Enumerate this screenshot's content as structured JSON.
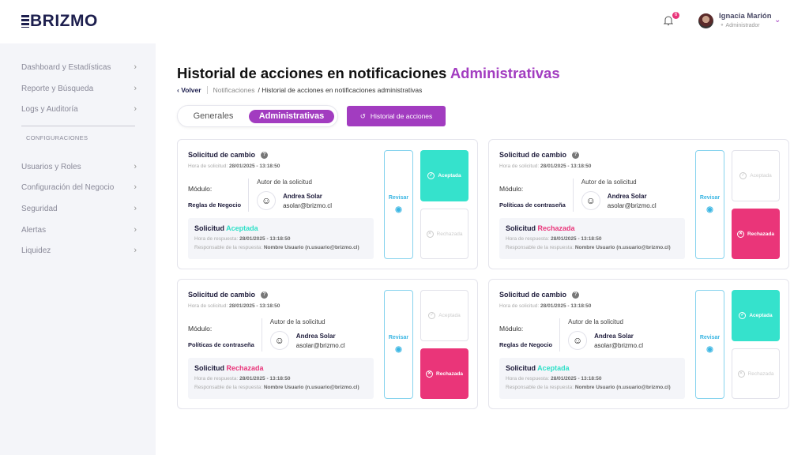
{
  "header": {
    "logo": "BRIZMO",
    "notifications_count": "6",
    "user_name": "Ignacia Marión",
    "user_role": "Administrador"
  },
  "sidebar": {
    "items": [
      {
        "label": "Dashboard y Estadísticas"
      },
      {
        "label": "Reporte y Búsqueda"
      },
      {
        "label": "Logs y Auditoría"
      }
    ],
    "section": "CONFIGURACIONES",
    "config_items": [
      {
        "label": "Usuarios y Roles"
      },
      {
        "label": "Configuración del Negocio"
      },
      {
        "label": "Seguridad"
      },
      {
        "label": "Alertas"
      },
      {
        "label": "Liquidez"
      }
    ]
  },
  "page": {
    "title": "Historial de acciones en notificaciones",
    "title_accent": "Administrativas",
    "breadcrumb": {
      "back": "Volver",
      "parent": "Notificaciones",
      "current": "/ Historial de acciones en notificaciones administrativas"
    },
    "tabs": {
      "general": "Generales",
      "admin": "Administrativas"
    },
    "history_button": "Historial de acciones"
  },
  "labels": {
    "title": "Solicitud de cambio",
    "hora_solicitud": "Hora de solicitud:",
    "modulo": "Módulo:",
    "autor": "Autor de la solicitud",
    "solicitud": "Solicitud",
    "hora_respuesta": "Hora de respuesta:",
    "responsable": "Responsable de la respuesta:",
    "revisar": "Revisar",
    "aceptada": "Aceptada",
    "rechazada": "Rechazada"
  },
  "colors": {
    "accent": "#a23cc0",
    "accepted": "#35e2cc",
    "rejected": "#ea3579",
    "review": "#3bb6e3"
  },
  "cards": [
    {
      "time": "28/01/2025 - 13:18:50",
      "module": "Reglas de Negocio",
      "author": "Andrea Solar",
      "email": "asolar@brizmo.cl",
      "status": "Aceptada",
      "resp_time": "28/01/2025 - 13:18:50",
      "responsible": "Nombre Usuario (n.usuario@brizmo.cl)"
    },
    {
      "time": "28/01/2025 - 13:18:50",
      "module": "Políticas de contraseña",
      "author": "Andrea Solar",
      "email": "asolar@brizmo.cl",
      "status": "Rechazada",
      "resp_time": "28/01/2025 - 13:18:50",
      "responsible": "Nombre Usuario (n.usuario@brizmo.cl)"
    },
    {
      "time": "28/01/2025 - 13:18:50",
      "module": "Políticas de contraseña",
      "author": "Andrea Solar",
      "email": "asolar@brizmo.cl",
      "status": "Rechazada",
      "resp_time": "28/01/2025 - 13:18:50",
      "responsible": "Nombre Usuario (n.usuario@brizmo.cl)"
    },
    {
      "time": "28/01/2025 - 13:18:50",
      "module": "Reglas de Negocio",
      "author": "Andrea Solar",
      "email": "asolar@brizmo.cl",
      "status": "Aceptada",
      "resp_time": "28/01/2025 - 13:18:50",
      "responsible": "Nombre Usuario (n.usuario@brizmo.cl)"
    }
  ]
}
